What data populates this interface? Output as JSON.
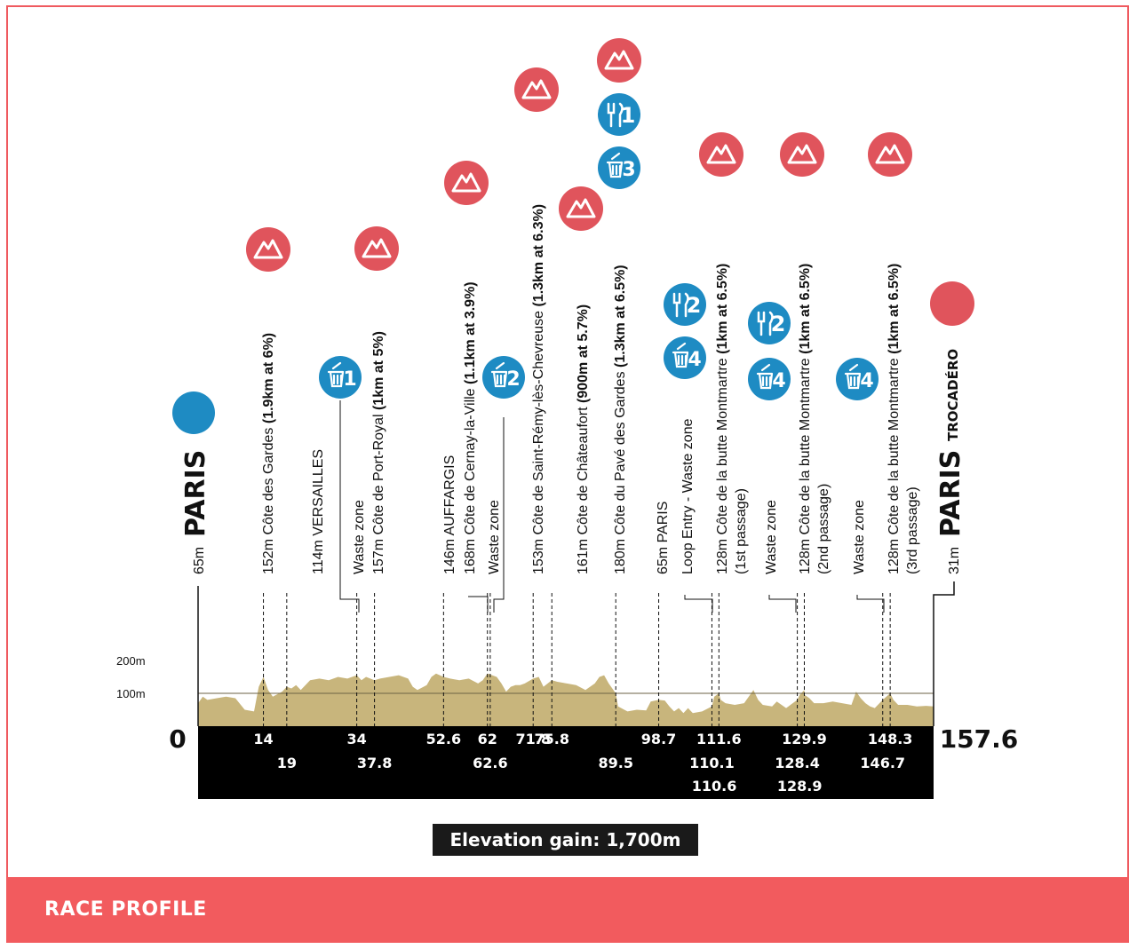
{
  "footer": {
    "title": "RACE PROFILE"
  },
  "elevation_gain": "Elevation gain: 1,700m",
  "colors": {
    "accent": "#ef5a5f",
    "profile_fill": "#c8b57c",
    "bar": "#000000",
    "food_icon": "#1e8bc3",
    "start_dot": "#1e8bc3",
    "finish_dot": "#e0545c"
  },
  "icons": {
    "climb": "mountain-icon",
    "food": "fork-knife-icon",
    "waste": "trash-icon"
  },
  "chart_data": {
    "type": "area",
    "y_ticks": [
      "200m",
      "100m"
    ],
    "ylim": [
      0,
      250
    ],
    "xlim": [
      0,
      157.6
    ],
    "start": {
      "km": "0",
      "altitude": "65m",
      "city": "PARIS"
    },
    "finish": {
      "km": "157.6",
      "altitude": "31m",
      "city": "PARIS",
      "place": "TROCADÉRO"
    },
    "profile": [
      [
        0,
        70
      ],
      [
        1,
        90
      ],
      [
        2,
        80
      ],
      [
        4,
        85
      ],
      [
        6,
        90
      ],
      [
        8,
        85
      ],
      [
        10,
        50
      ],
      [
        12,
        45
      ],
      [
        13,
        120
      ],
      [
        14,
        150
      ],
      [
        15,
        110
      ],
      [
        16,
        90
      ],
      [
        18,
        105
      ],
      [
        19,
        120
      ],
      [
        20,
        115
      ],
      [
        21,
        125
      ],
      [
        22,
        110
      ],
      [
        24,
        140
      ],
      [
        26,
        145
      ],
      [
        28,
        140
      ],
      [
        30,
        150
      ],
      [
        32,
        145
      ],
      [
        34,
        155
      ],
      [
        35,
        140
      ],
      [
        36,
        150
      ],
      [
        37.8,
        140
      ],
      [
        39,
        145
      ],
      [
        41,
        150
      ],
      [
        43,
        155
      ],
      [
        45,
        145
      ],
      [
        46,
        120
      ],
      [
        47,
        110
      ],
      [
        49,
        125
      ],
      [
        50,
        150
      ],
      [
        51,
        160
      ],
      [
        52.6,
        150
      ],
      [
        54,
        145
      ],
      [
        56,
        140
      ],
      [
        58,
        145
      ],
      [
        60,
        130
      ],
      [
        61,
        140
      ],
      [
        62,
        160
      ],
      [
        63,
        155
      ],
      [
        64,
        150
      ],
      [
        65,
        130
      ],
      [
        66,
        105
      ],
      [
        67,
        120
      ],
      [
        68,
        125
      ],
      [
        69,
        125
      ],
      [
        70,
        130
      ],
      [
        71.8,
        145
      ],
      [
        73,
        150
      ],
      [
        74,
        120
      ],
      [
        75.8,
        140
      ],
      [
        77,
        135
      ],
      [
        79,
        130
      ],
      [
        81,
        125
      ],
      [
        83,
        110
      ],
      [
        85,
        130
      ],
      [
        86,
        150
      ],
      [
        87,
        155
      ],
      [
        88,
        130
      ],
      [
        89.5,
        100
      ],
      [
        90,
        60
      ],
      [
        92,
        45
      ],
      [
        94,
        50
      ],
      [
        96,
        48
      ],
      [
        97,
        75
      ],
      [
        98.7,
        80
      ],
      [
        100,
        78
      ],
      [
        101,
        60
      ],
      [
        102,
        45
      ],
      [
        103,
        55
      ],
      [
        104,
        40
      ],
      [
        105,
        55
      ],
      [
        106,
        40
      ],
      [
        108,
        45
      ],
      [
        110.1,
        60
      ],
      [
        110.6,
        90
      ],
      [
        111.6,
        100
      ],
      [
        112,
        80
      ],
      [
        113,
        70
      ],
      [
        115,
        65
      ],
      [
        117,
        70
      ],
      [
        119,
        110
      ],
      [
        120,
        80
      ],
      [
        121,
        65
      ],
      [
        123,
        60
      ],
      [
        124,
        75
      ],
      [
        126,
        55
      ],
      [
        128.4,
        80
      ],
      [
        128.9,
        95
      ],
      [
        129.9,
        110
      ],
      [
        130,
        95
      ],
      [
        131,
        85
      ],
      [
        132,
        70
      ],
      [
        134,
        70
      ],
      [
        136,
        75
      ],
      [
        138,
        70
      ],
      [
        140,
        65
      ],
      [
        141,
        105
      ],
      [
        142,
        85
      ],
      [
        143,
        70
      ],
      [
        144,
        60
      ],
      [
        145,
        55
      ],
      [
        146.7,
        80
      ],
      [
        148.3,
        100
      ],
      [
        149,
        80
      ],
      [
        150,
        65
      ],
      [
        152,
        65
      ],
      [
        154,
        60
      ],
      [
        156,
        62
      ],
      [
        157.6,
        60
      ]
    ],
    "km_labels_row1": [
      {
        "km": 14,
        "text": "14"
      },
      {
        "km": 34,
        "text": "34"
      },
      {
        "km": 52.6,
        "text": "52.6"
      },
      {
        "km": 62,
        "text": "62"
      },
      {
        "km": 71.8,
        "text": "71.8"
      },
      {
        "km": 75.8,
        "text": "75.8"
      },
      {
        "km": 98.7,
        "text": "98.7"
      },
      {
        "km": 111.6,
        "text": "111.6"
      },
      {
        "km": 129.9,
        "text": "129.9"
      },
      {
        "km": 148.3,
        "text": "148.3"
      }
    ],
    "km_labels_row2": [
      {
        "km": 19,
        "text": "19"
      },
      {
        "km": 37.8,
        "text": "37.8"
      },
      {
        "km": 62.6,
        "text": "62.6"
      },
      {
        "km": 89.5,
        "text": "89.5"
      },
      {
        "km": 110.1,
        "text": "110.1"
      },
      {
        "km": 128.4,
        "text": "128.4"
      },
      {
        "km": 146.7,
        "text": "146.7"
      }
    ],
    "km_labels_row3": [
      {
        "km": 110.6,
        "text": "110.6"
      },
      {
        "km": 128.9,
        "text": "128.9"
      }
    ],
    "waypoints": [
      {
        "km": 14,
        "lines": [
          [
            "152m Côte des Gardes ",
            "(1.9km at 6%)"
          ]
        ],
        "icons": [
          "climb"
        ]
      },
      {
        "km": 19,
        "lines": [
          [
            "114m VERSAILLES",
            ""
          ]
        ],
        "icons": []
      },
      {
        "km": 34,
        "lines": [
          [
            "Waste zone",
            ""
          ]
        ],
        "icons": [
          "waste"
        ],
        "badge": "1"
      },
      {
        "km": 37.8,
        "lines": [
          [
            "157m Côte de Port-Royal ",
            "(1km at 5%)"
          ]
        ],
        "icons": [
          "climb"
        ]
      },
      {
        "km": 52.6,
        "lines": [
          [
            "146m AUFFARGIS",
            ""
          ]
        ],
        "icons": []
      },
      {
        "km": 62,
        "lines": [
          [
            "168m Côte de Cernay-la-Ville ",
            "(1.1km at 3.9%)"
          ]
        ],
        "icons": [
          "climb"
        ]
      },
      {
        "km": 62.6,
        "lines": [
          [
            "Waste zone",
            ""
          ]
        ],
        "icons": [
          "waste"
        ],
        "badge": "2"
      },
      {
        "km": 71.8,
        "lines": [
          [
            "153m Côte de Saint-Rémy-lès-Chevreuse ",
            "(1.3km at 6.3%)"
          ]
        ],
        "icons": [
          "climb"
        ]
      },
      {
        "km": 75.8,
        "lines": [
          [
            "161m Côte de Châteaufort ",
            "(900m at 5.7%)"
          ]
        ],
        "icons": [
          "climb"
        ]
      },
      {
        "km": 89.5,
        "lines": [
          [
            "180m Côte du Pavé des Gardes ",
            "(1.3km at 6.5%)"
          ]
        ],
        "icons": [
          "climb",
          "food",
          "waste"
        ],
        "food_badge": "1",
        "badge": "3"
      },
      {
        "km": 98.7,
        "lines": [
          [
            "65m PARIS",
            ""
          ]
        ],
        "icons": []
      },
      {
        "km": 110.1,
        "lines": [
          [
            "Loop Entry - Waste zone",
            ""
          ]
        ],
        "icons": [
          "food",
          "waste"
        ],
        "food_badge": "2",
        "badge": "4"
      },
      {
        "km": 111.6,
        "lines": [
          [
            "128m Côte de la butte Montmartre ",
            "(1km at 6.5%)"
          ],
          [
            "(1st passage)",
            ""
          ]
        ],
        "icons": [
          "climb"
        ]
      },
      {
        "km": 128.4,
        "lines": [
          [
            "Waste zone",
            ""
          ]
        ],
        "icons": [
          "food",
          "waste"
        ],
        "food_badge": "2",
        "badge": "4"
      },
      {
        "km": 129.9,
        "lines": [
          [
            "128m Côte de la butte Montmartre ",
            "(1km at 6.5%)"
          ],
          [
            "(2nd passage)",
            ""
          ]
        ],
        "icons": [
          "climb"
        ]
      },
      {
        "km": 146.7,
        "lines": [
          [
            "Waste zone",
            ""
          ]
        ],
        "icons": [
          "waste"
        ],
        "badge": "4"
      },
      {
        "km": 148.3,
        "lines": [
          [
            "128m Côte de la butte Montmartre ",
            "(1km at 6.5%)"
          ],
          [
            "(3rd passage)",
            ""
          ]
        ],
        "icons": [
          "climb"
        ]
      }
    ]
  }
}
